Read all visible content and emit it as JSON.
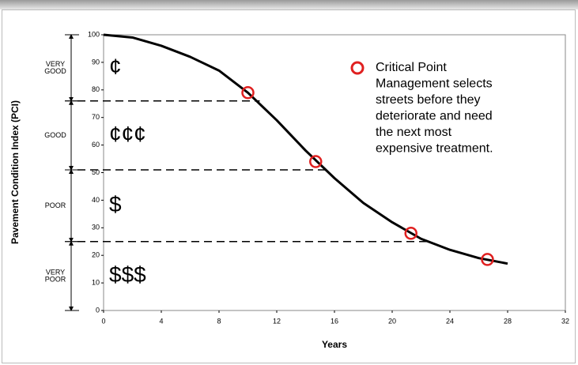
{
  "chart_data": {
    "type": "line",
    "xlabel": "Years",
    "ylabel": "Pavement Condition Index (PCI)",
    "xlim": [
      0,
      32
    ],
    "ylim": [
      0,
      100
    ],
    "xticks": [
      0,
      4,
      8,
      12,
      16,
      20,
      24,
      28,
      32
    ],
    "yticks": [
      0,
      10,
      20,
      30,
      40,
      50,
      60,
      70,
      80,
      90,
      100
    ],
    "curve": {
      "color": "#000000",
      "x": [
        0,
        2,
        4,
        6,
        8,
        10,
        12,
        14,
        16,
        18,
        20,
        22,
        24,
        26,
        28
      ],
      "values": [
        100,
        99,
        96,
        92,
        87,
        79,
        69,
        58,
        48,
        39,
        32,
        26,
        22,
        19,
        17
      ]
    },
    "critical_points": {
      "color": "#e02020",
      "x": [
        10,
        14.7,
        21.3,
        26.6
      ],
      "values": [
        79,
        54,
        28,
        18.5
      ],
      "legend": [
        "Critical Point",
        "Management selects",
        "streets before they",
        "deteriorate and need",
        "the next most",
        "expensive treatment."
      ]
    },
    "thresholds": [
      76,
      51,
      25
    ],
    "bands": [
      {
        "lines": [
          "VERY",
          "GOOD"
        ],
        "symbol": "¢",
        "range": [
          76,
          100
        ]
      },
      {
        "lines": [
          "GOOD"
        ],
        "symbol": "¢¢¢",
        "range": [
          51,
          76
        ]
      },
      {
        "lines": [
          "POOR"
        ],
        "symbol": "$",
        "range": [
          25,
          51
        ]
      },
      {
        "lines": [
          "VERY",
          "POOR"
        ],
        "symbol": "$$$",
        "range": [
          0,
          25
        ]
      }
    ]
  }
}
